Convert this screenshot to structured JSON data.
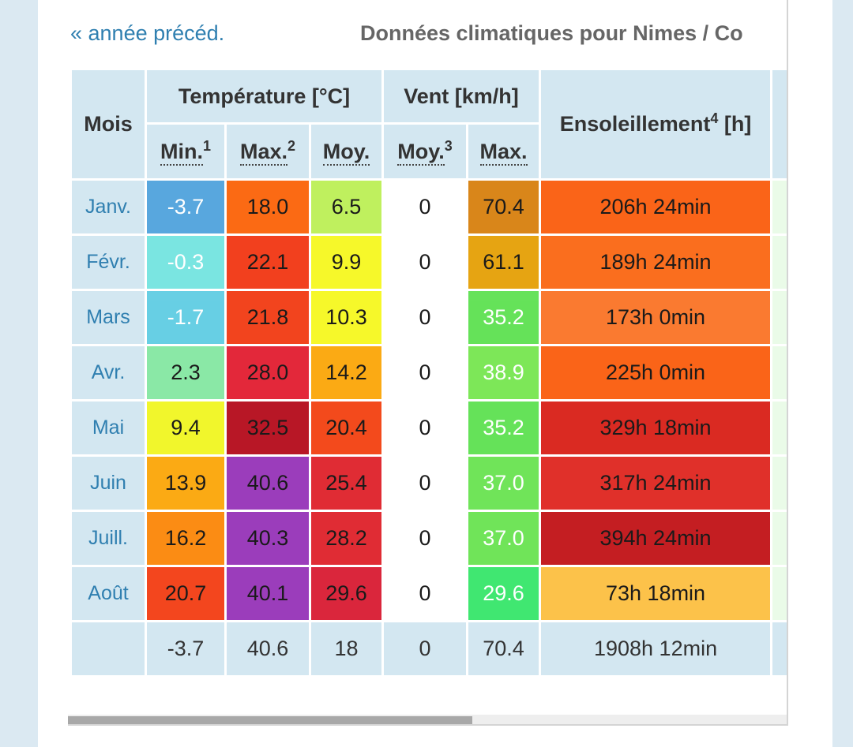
{
  "nav": {
    "prev_link": "« année précéd.",
    "title": "Données climatiques pour Nimes / Co"
  },
  "table": {
    "headers": {
      "mois": "Mois",
      "temperature": "Température [°C]",
      "vent": "Vent [km/h]",
      "sun_label": "Ensoleillement",
      "sun_sup": "4",
      "sun_unit": " [h]",
      "min": "Min.",
      "min_sup": "1",
      "max": "Max.",
      "max_sup": "2",
      "moy": "Moy.",
      "wind_moy": "Moy.",
      "wind_moy_sup": "3",
      "wind_max": "Max."
    },
    "rows": [
      {
        "month": "Janv.",
        "tmin": "-3.7",
        "tmax": "18.0",
        "tmoy": "6.5",
        "wmoy": "0",
        "wmax": "70.4",
        "sun": "206h 24min"
      },
      {
        "month": "Févr.",
        "tmin": "-0.3",
        "tmax": "22.1",
        "tmoy": "9.9",
        "wmoy": "0",
        "wmax": "61.1",
        "sun": "189h 24min"
      },
      {
        "month": "Mars",
        "tmin": "-1.7",
        "tmax": "21.8",
        "tmoy": "10.3",
        "wmoy": "0",
        "wmax": "35.2",
        "sun": "173h 0min"
      },
      {
        "month": "Avr.",
        "tmin": "2.3",
        "tmax": "28.0",
        "tmoy": "14.2",
        "wmoy": "0",
        "wmax": "38.9",
        "sun": "225h 0min"
      },
      {
        "month": "Mai",
        "tmin": "9.4",
        "tmax": "32.5",
        "tmoy": "20.4",
        "wmoy": "0",
        "wmax": "35.2",
        "sun": "329h 18min"
      },
      {
        "month": "Juin",
        "tmin": "13.9",
        "tmax": "40.6",
        "tmoy": "25.4",
        "wmoy": "0",
        "wmax": "37.0",
        "sun": "317h 24min"
      },
      {
        "month": "Juill.",
        "tmin": "16.2",
        "tmax": "40.3",
        "tmoy": "28.2",
        "wmoy": "0",
        "wmax": "37.0",
        "sun": "394h 24min"
      },
      {
        "month": "Août",
        "tmin": "20.7",
        "tmax": "40.1",
        "tmoy": "29.6",
        "wmoy": "0",
        "wmax": "29.6",
        "sun": "73h 18min"
      }
    ],
    "totals": {
      "tmin": "-3.7",
      "tmax": "40.6",
      "tmoy": "18",
      "wmoy": "0",
      "wmax": "70.4",
      "sun": "1908h 12min"
    }
  },
  "colors": {
    "header_bg": "#d3e7f1",
    "link": "#2f7fb0",
    "tmin": [
      "#4aa0dc",
      "#6fe3df",
      "#5bcbe2",
      "#8ae8a6",
      "#f1f62c",
      "#fbaa14",
      "#fb8c14",
      "#f3461e"
    ],
    "tmax": [
      "#fb6a14",
      "#f2401e",
      "#f2441e",
      "#e3283a",
      "#b81726",
      "#9b3dbb",
      "#9b3dbb",
      "#9b3dbb"
    ],
    "tmoy": [
      "#bff05e",
      "#f6f82a",
      "#f6f82a",
      "#fbaa14",
      "#f34a1c",
      "#e02c34",
      "#e02c34",
      "#da263c"
    ],
    "wmax": [
      "#d9861a",
      "#e6a412",
      "#59e04c",
      "#72e64a",
      "#59e04c",
      "#64e24c",
      "#64e24c",
      "#30e665"
    ],
    "sun": [
      "#fa6418",
      "#fa6e1e",
      "#fa7a30",
      "#fa6418",
      "#da2a22",
      "#e0302a",
      "#c41e22",
      "#fcc24a"
    ],
    "light_text_min": [
      true,
      true,
      true,
      false,
      false,
      false,
      false,
      false
    ],
    "light_text_wmax": [
      false,
      false,
      true,
      true,
      true,
      true,
      true,
      true
    ]
  }
}
